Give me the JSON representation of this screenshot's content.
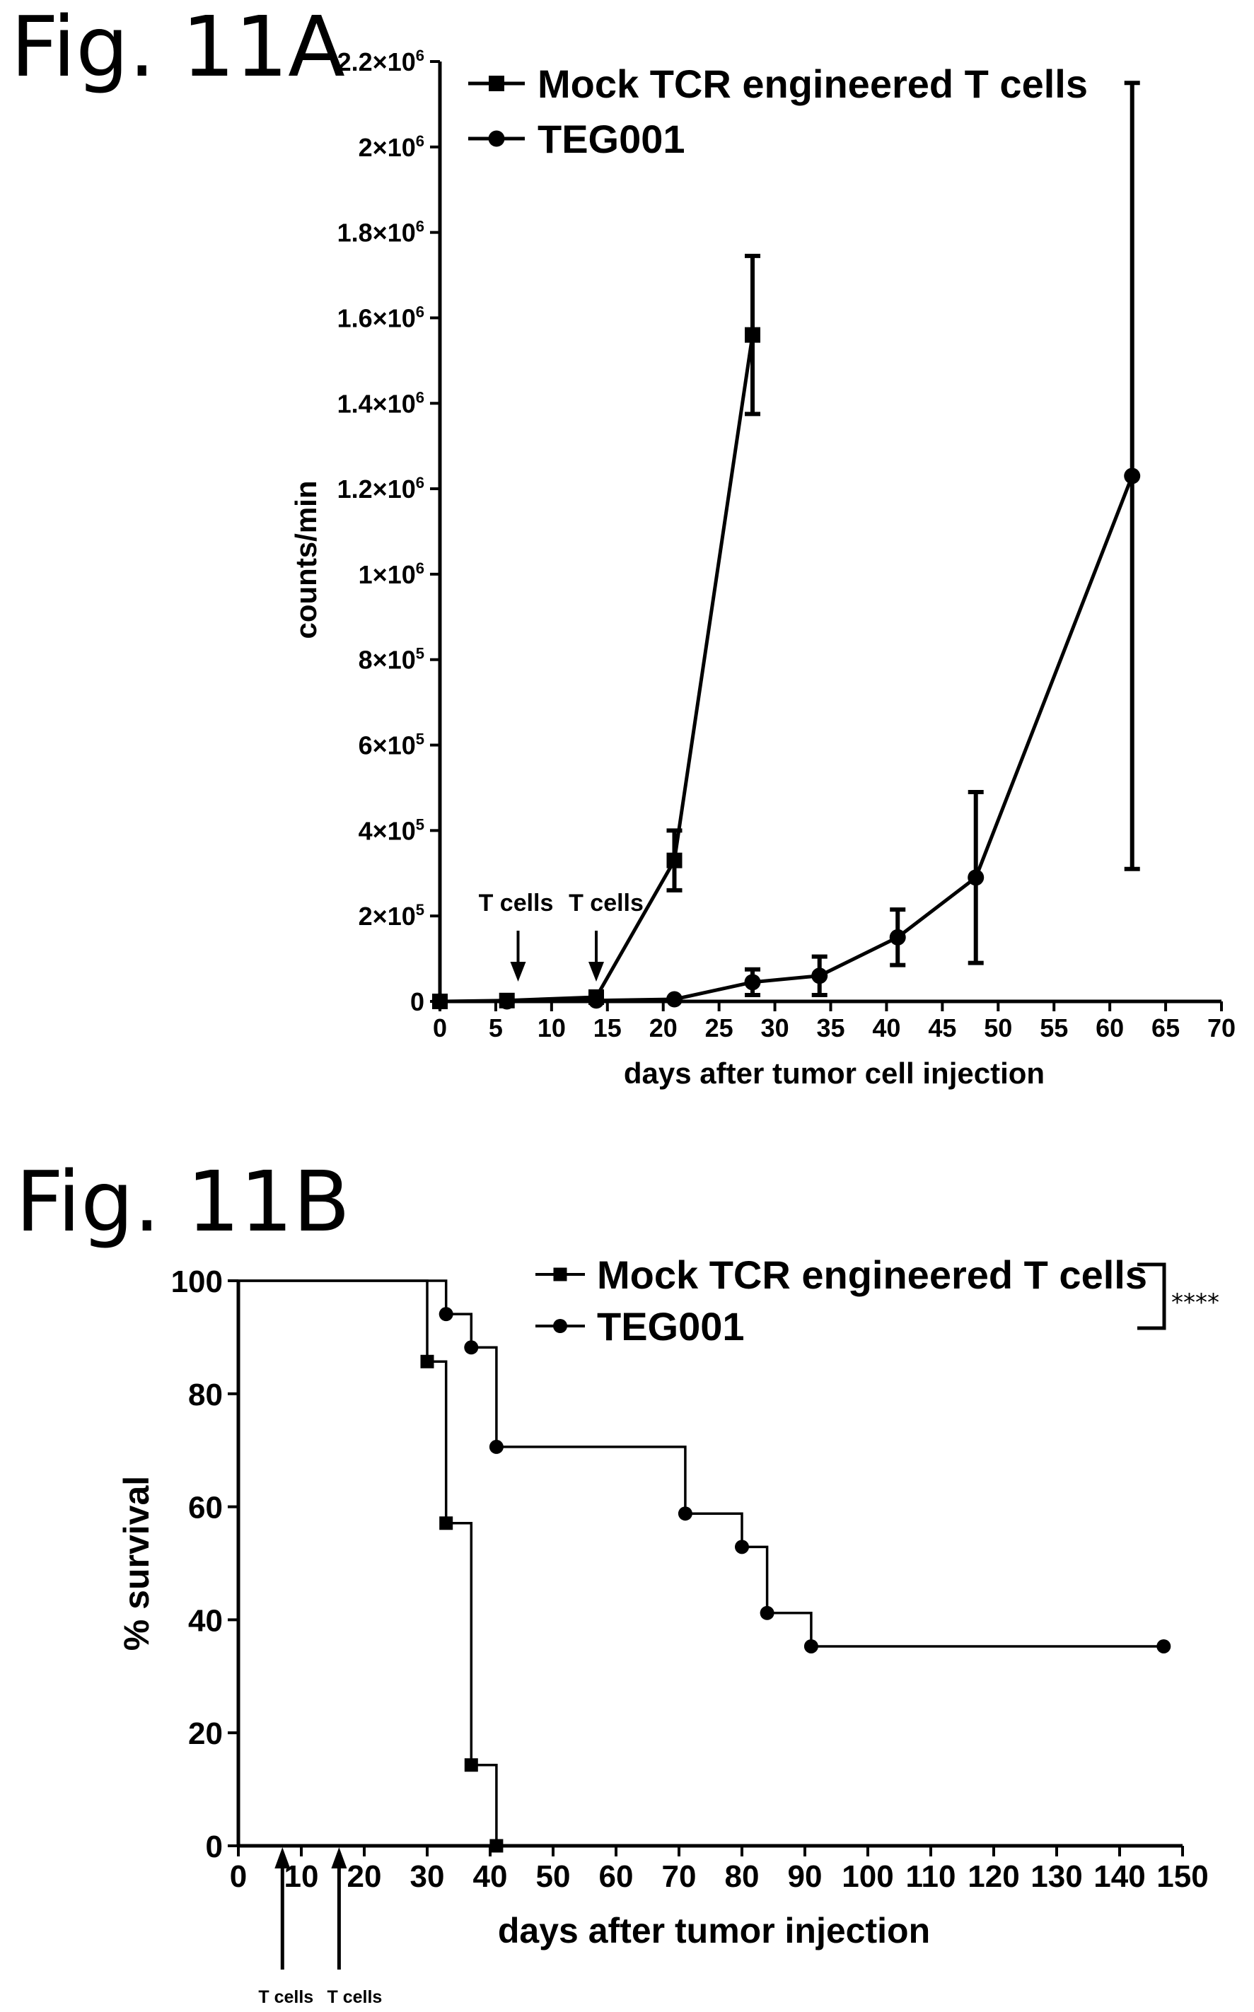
{
  "chart_data": [
    {
      "panel_label": "Fig. 11A",
      "type": "line",
      "title": "",
      "xlabel": "days after tumor cell injection",
      "ylabel": "counts/min",
      "xlim": [
        0,
        70
      ],
      "ylim": [
        0,
        2200000
      ],
      "x_ticks": [
        0,
        5,
        10,
        15,
        20,
        25,
        30,
        35,
        40,
        45,
        50,
        55,
        60,
        65,
        70
      ],
      "y_ticks": [
        {
          "value": 0,
          "label": "0"
        },
        {
          "value": 200000,
          "label": "2×10",
          "exp": "5"
        },
        {
          "value": 400000,
          "label": "4×10",
          "exp": "5"
        },
        {
          "value": 600000,
          "label": "6×10",
          "exp": "5"
        },
        {
          "value": 800000,
          "label": "8×10",
          "exp": "5"
        },
        {
          "value": 1000000,
          "label": "1×10",
          "exp": "6"
        },
        {
          "value": 1200000,
          "label": "1.2×10",
          "exp": "6"
        },
        {
          "value": 1400000,
          "label": "1.4×10",
          "exp": "6"
        },
        {
          "value": 1600000,
          "label": "1.6×10",
          "exp": "6"
        },
        {
          "value": 1800000,
          "label": "1.8×10",
          "exp": "6"
        },
        {
          "value": 2000000,
          "label": "2×10",
          "exp": "6"
        },
        {
          "value": 2200000,
          "label": "2.2×10",
          "exp": "6"
        }
      ],
      "legend_position": "top-right",
      "series": [
        {
          "name": "Mock TCR engineered T cells",
          "marker": "square",
          "x": [
            0,
            6,
            14,
            21,
            28
          ],
          "y": [
            0,
            2000,
            10000,
            330000,
            1560000
          ],
          "error": [
            0,
            0,
            5000,
            70000,
            185000
          ]
        },
        {
          "name": "TEG001",
          "marker": "circle",
          "x": [
            0,
            6,
            14,
            21,
            28,
            34,
            41,
            48,
            62
          ],
          "y": [
            0,
            0,
            2000,
            5000,
            45000,
            60000,
            150000,
            290000,
            1230000
          ],
          "error": [
            0,
            0,
            0,
            0,
            30000,
            45000,
            65000,
            200000,
            920000
          ]
        }
      ],
      "annotations": [
        {
          "text": "T cells",
          "x": 7
        },
        {
          "text": "T cells",
          "x": 14
        }
      ]
    },
    {
      "panel_label": "Fig. 11B",
      "type": "line",
      "step": true,
      "title": "",
      "xlabel": "days after tumor injection",
      "ylabel": "% survival",
      "xlim": [
        0,
        150
      ],
      "ylim": [
        0,
        100
      ],
      "x_ticks": [
        0,
        10,
        20,
        30,
        40,
        50,
        60,
        70,
        80,
        90,
        100,
        110,
        120,
        130,
        140,
        150
      ],
      "y_ticks": [
        0,
        20,
        40,
        60,
        80,
        100
      ],
      "legend_position": "top-right",
      "significance": "****",
      "series": [
        {
          "name": "Mock TCR engineered T cells",
          "marker": "square",
          "x": [
            0,
            30,
            33,
            37,
            41
          ],
          "y": [
            100,
            85.7,
            57.1,
            14.3,
            0
          ]
        },
        {
          "name": "TEG001",
          "marker": "circle",
          "x": [
            0,
            33,
            37,
            41,
            71,
            80,
            84,
            91,
            147
          ],
          "y": [
            100,
            94.1,
            88.2,
            70.6,
            58.8,
            52.9,
            41.2,
            35.3,
            35.3
          ]
        }
      ],
      "annotations": [
        {
          "text": "T cells",
          "x": 7
        },
        {
          "text": "T cells",
          "x": 16
        }
      ]
    }
  ]
}
